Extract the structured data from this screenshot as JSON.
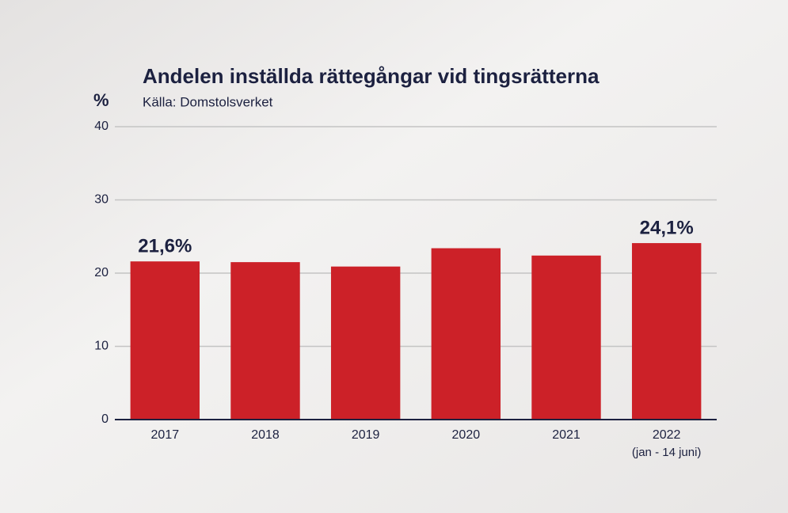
{
  "chart_data": {
    "type": "bar",
    "title": "Andelen inställda rättegångar vid tingsrätterna",
    "subtitle": "Källa: Domstolsverket",
    "y_label": "%",
    "categories": [
      "2017",
      "2018",
      "2019",
      "2020",
      "2021",
      "2022 (jan - 14 juni)"
    ],
    "values": [
      21.6,
      21.5,
      20.9,
      23.4,
      22.4,
      24.1
    ],
    "value_labels": [
      "21,6%",
      null,
      null,
      null,
      null,
      "24,1%"
    ],
    "color": "#cc2128",
    "ylim": [
      0,
      40
    ],
    "yticks": [
      0,
      10,
      20,
      30,
      40
    ],
    "grid": true
  }
}
